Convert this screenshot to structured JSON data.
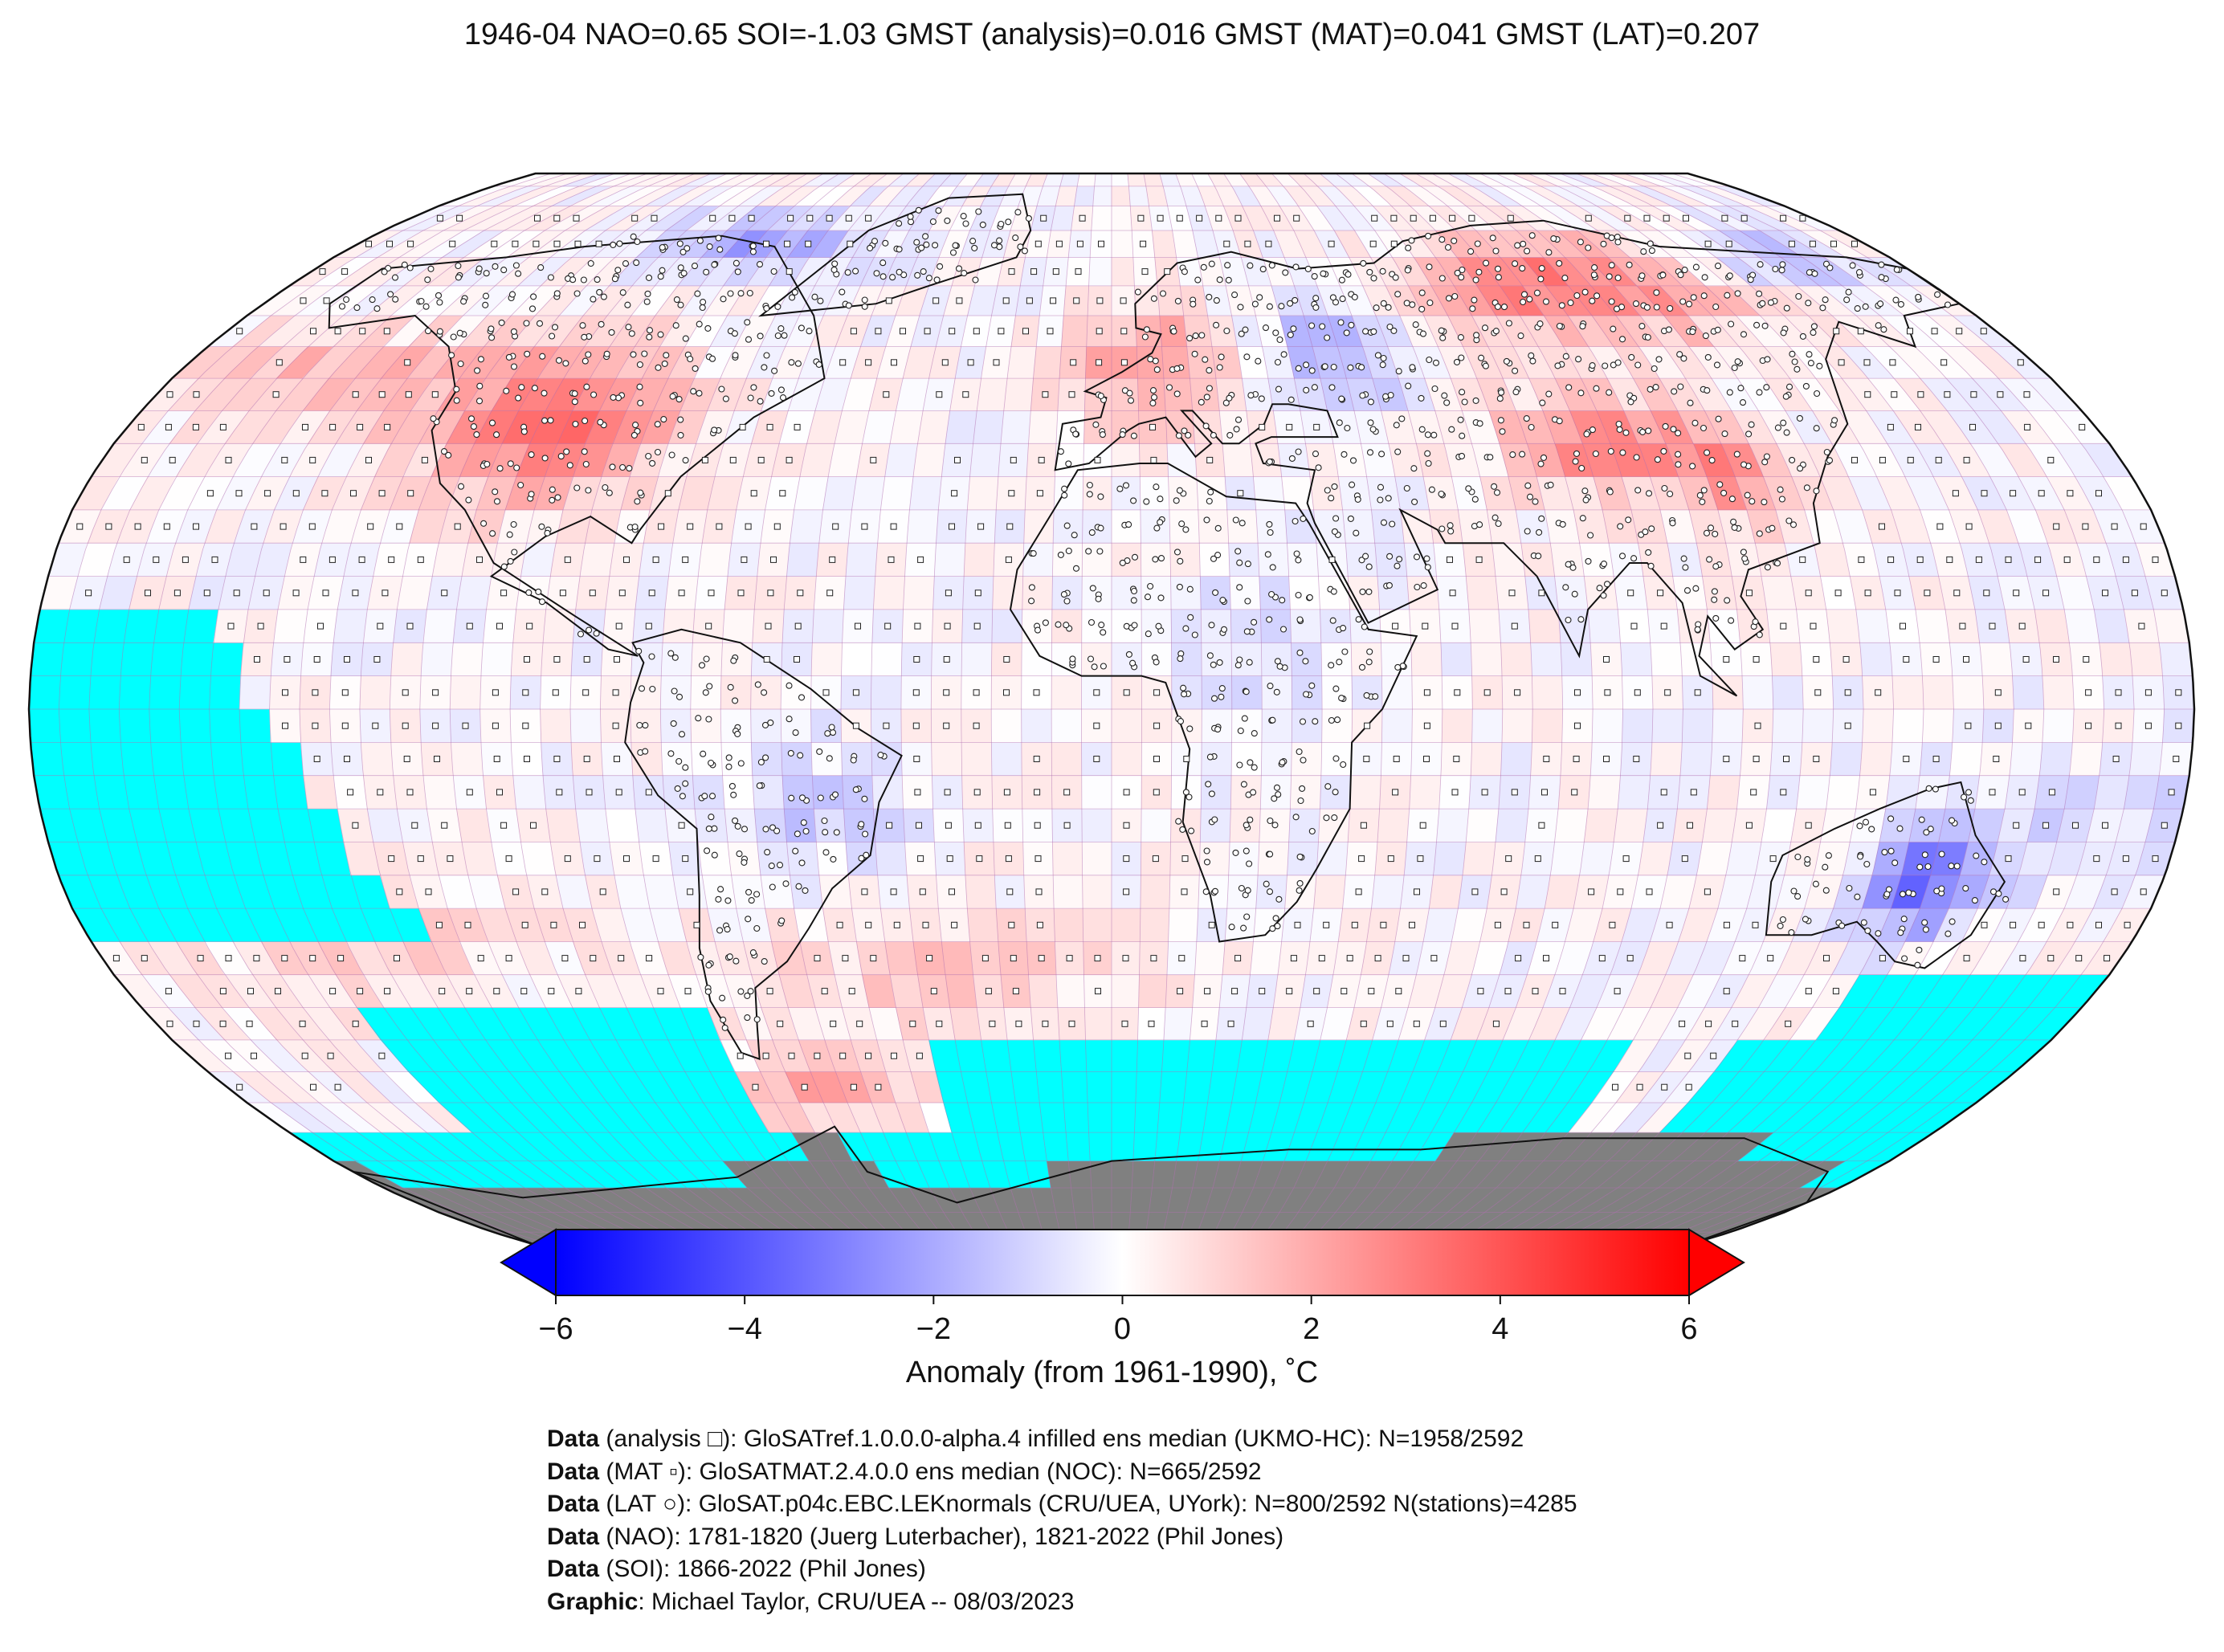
{
  "title": "1946-04 NAO=0.65 SOI=-1.03 GMST (analysis)=0.016 GMST (MAT)=0.041 GMST (LAT)=0.207",
  "colorbar": {
    "label": "Anomaly (from 1961-1990), ˚C",
    "ticks": [
      "−6",
      "−4",
      "−2",
      "0",
      "2",
      "4",
      "6"
    ],
    "min": -6,
    "max": 6,
    "colors": {
      "cold": "#0000ff",
      "neutral": "#ffffff",
      "warm": "#ff0000",
      "missing_ocean": "#00ffff",
      "ice_land": "#808080"
    }
  },
  "credits": [
    {
      "lead": "Data",
      "text": " (analysis □): GloSATref.1.0.0.0-alpha.4 infilled ens median (UKMO-HC): N=1958/2592"
    },
    {
      "lead": "Data",
      "text": " (MAT ▫): GloSATMAT.2.4.0.0 ens median (NOC): N=665/2592"
    },
    {
      "lead": "Data",
      "text": " (LAT ○): GloSAT.p04c.EBC.LEKnormals (CRU/UEA, UYork): N=800/2592 N(stations)=4285"
    },
    {
      "lead": "Data",
      "text": " (NAO): 1781-1820 (Juerg Luterbacher), 1821-2022 (Phil Jones)"
    },
    {
      "lead": "Data",
      "text": " (SOI): 1866-2022 (Phil Jones)"
    },
    {
      "lead": "Graphic",
      "text": ": Michael Taylor, CRU/UEA -- 08/03/2023"
    }
  ],
  "map": {
    "projection": "robinson",
    "grid_resolution_deg": 5,
    "anomaly_regions": [
      {
        "name": "North America",
        "anomaly": 3.5
      },
      {
        "name": "Eastern Russia",
        "anomaly": 5.0
      },
      {
        "name": "Europe",
        "anomaly": 3.0
      },
      {
        "name": "Central Asia / China",
        "anomaly": 4.0
      },
      {
        "name": "Western Russia",
        "anomaly": -2.0
      },
      {
        "name": "Australia",
        "anomaly": -3.5
      },
      {
        "name": "Arctic Canada",
        "anomaly": -2.0
      },
      {
        "name": "Southern Ocean",
        "anomaly": -1.5
      }
    ]
  }
}
